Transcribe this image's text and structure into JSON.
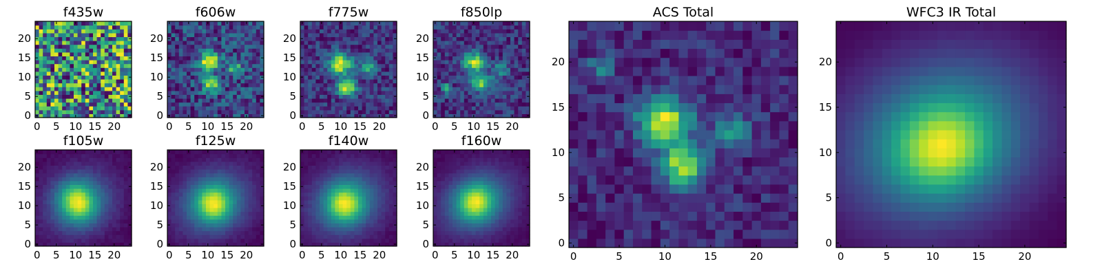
{
  "chart_data": [
    {
      "type": "heatmap",
      "title": "f435w",
      "xticks": [
        0,
        5,
        10,
        15,
        20
      ],
      "yticks": [
        0,
        5,
        10,
        15,
        20
      ],
      "xlim": [
        -0.5,
        24.5
      ],
      "ylim": [
        -0.5,
        24.5
      ],
      "grid_size": [
        25,
        25
      ],
      "colormap": "viridis",
      "features": [],
      "noise": 0.42,
      "bias": 0.62,
      "dark_patches": []
    },
    {
      "type": "heatmap",
      "title": "f606w",
      "xticks": [
        0,
        5,
        10,
        15,
        20
      ],
      "yticks": [
        0,
        5,
        10,
        15,
        20
      ],
      "xlim": [
        -0.5,
        24.5
      ],
      "ylim": [
        -0.5,
        24.5
      ],
      "grid_size": [
        25,
        25
      ],
      "colormap": "viridis",
      "features": [
        {
          "x": 10.5,
          "y": 14,
          "sx": 1.8,
          "sy": 1.6,
          "amp": 0.55
        },
        {
          "x": 11,
          "y": 8,
          "sx": 1.6,
          "sy": 1.3,
          "amp": 0.45
        },
        {
          "x": 17,
          "y": 12.5,
          "sx": 1.3,
          "sy": 1.2,
          "amp": 0.3
        }
      ],
      "noise": 0.28,
      "bias": 0.4,
      "dark_patches": []
    },
    {
      "type": "heatmap",
      "title": "f775w",
      "xticks": [
        0,
        5,
        10,
        15,
        20
      ],
      "yticks": [
        0,
        5,
        10,
        15,
        20
      ],
      "xlim": [
        -0.5,
        24.5
      ],
      "ylim": [
        -0.5,
        24.5
      ],
      "grid_size": [
        25,
        25
      ],
      "colormap": "viridis",
      "features": [
        {
          "x": 10,
          "y": 13.5,
          "sx": 2,
          "sy": 1.8,
          "amp": 0.6
        },
        {
          "x": 11.5,
          "y": 7.5,
          "sx": 1.8,
          "sy": 1.5,
          "amp": 0.55
        },
        {
          "x": 17,
          "y": 12.5,
          "sx": 1.4,
          "sy": 1.3,
          "amp": 0.35
        }
      ],
      "noise": 0.22,
      "bias": 0.32,
      "dark_patches": []
    },
    {
      "type": "heatmap",
      "title": "f850lp",
      "xticks": [
        0,
        5,
        10,
        15,
        20
      ],
      "yticks": [
        0,
        5,
        10,
        15,
        20
      ],
      "xlim": [
        -0.5,
        24.5
      ],
      "ylim": [
        -0.5,
        24.5
      ],
      "grid_size": [
        25,
        25
      ],
      "colormap": "viridis",
      "features": [
        {
          "x": 10,
          "y": 14,
          "sx": 2,
          "sy": 1.8,
          "amp": 0.55
        },
        {
          "x": 12,
          "y": 8.5,
          "sx": 2,
          "sy": 1.6,
          "amp": 0.5
        },
        {
          "x": 3,
          "y": 7,
          "sx": 0.8,
          "sy": 1,
          "amp": 0.45
        },
        {
          "x": 17,
          "y": 12,
          "sx": 1.4,
          "sy": 1.3,
          "amp": 0.3
        }
      ],
      "noise": 0.24,
      "bias": 0.33,
      "dark_patches": []
    },
    {
      "type": "heatmap",
      "title": "f105w",
      "xticks": [
        0,
        5,
        10,
        15,
        20
      ],
      "yticks": [
        0,
        5,
        10,
        15,
        20
      ],
      "xlim": [
        -0.5,
        24.5
      ],
      "ylim": [
        -0.5,
        24.5
      ],
      "grid_size": [
        25,
        25
      ],
      "colormap": "viridis",
      "features": [
        {
          "x": 10.5,
          "y": 11,
          "sx": 3,
          "sy": 3.6,
          "amp": 0.7,
          "rot": -0.5
        },
        {
          "x": 11,
          "y": 11,
          "sx": 6.5,
          "sy": 5.5,
          "amp": 0.5,
          "rot": -0.5
        }
      ],
      "noise": 0.07,
      "bias": 0.06,
      "dark_patches": []
    },
    {
      "type": "heatmap",
      "title": "f125w",
      "xticks": [
        0,
        5,
        10,
        15,
        20
      ],
      "yticks": [
        0,
        5,
        10,
        15,
        20
      ],
      "xlim": [
        -0.5,
        24.5
      ],
      "ylim": [
        -0.5,
        24.5
      ],
      "grid_size": [
        25,
        25
      ],
      "colormap": "viridis",
      "features": [
        {
          "x": 11.5,
          "y": 10.5,
          "sx": 3,
          "sy": 3.2,
          "amp": 0.65,
          "rot": -0.5
        },
        {
          "x": 11.5,
          "y": 11,
          "sx": 7,
          "sy": 5.8,
          "amp": 0.55,
          "rot": -0.5
        }
      ],
      "noise": 0.06,
      "bias": 0.05,
      "dark_patches": []
    },
    {
      "type": "heatmap",
      "title": "f140w",
      "xticks": [
        0,
        5,
        10,
        15,
        20
      ],
      "yticks": [
        0,
        5,
        10,
        15,
        20
      ],
      "xlim": [
        -0.5,
        24.5
      ],
      "ylim": [
        -0.5,
        24.5
      ],
      "grid_size": [
        25,
        25
      ],
      "colormap": "viridis",
      "features": [
        {
          "x": 11,
          "y": 10.5,
          "sx": 3,
          "sy": 3.2,
          "amp": 0.65,
          "rot": -0.5
        },
        {
          "x": 11.5,
          "y": 11,
          "sx": 7,
          "sy": 5.8,
          "amp": 0.55,
          "rot": -0.5
        }
      ],
      "noise": 0.06,
      "bias": 0.04,
      "dark_patches": []
    },
    {
      "type": "heatmap",
      "title": "f160w",
      "xticks": [
        0,
        5,
        10,
        15,
        20
      ],
      "yticks": [
        0,
        5,
        10,
        15,
        20
      ],
      "xlim": [
        -0.5,
        24.5
      ],
      "ylim": [
        -0.5,
        24.5
      ],
      "grid_size": [
        25,
        25
      ],
      "colormap": "viridis",
      "features": [
        {
          "x": 10.5,
          "y": 11,
          "sx": 3.2,
          "sy": 3.2,
          "amp": 0.65,
          "rot": -0.5
        },
        {
          "x": 11,
          "y": 11,
          "sx": 7,
          "sy": 5.5,
          "amp": 0.5,
          "rot": -0.5
        }
      ],
      "noise": 0.05,
      "bias": 0.02,
      "dark_patches": []
    },
    {
      "type": "heatmap",
      "title": "ACS Total",
      "xticks": [
        0,
        5,
        10,
        15,
        20
      ],
      "yticks": [
        0,
        5,
        10,
        15,
        20
      ],
      "xlim": [
        -0.5,
        24.5
      ],
      "ylim": [
        -0.5,
        24.5
      ],
      "grid_size": [
        25,
        25
      ],
      "colormap": "viridis",
      "features": [
        {
          "x": 10,
          "y": 13.5,
          "sx": 2,
          "sy": 1.7,
          "amp": 0.55
        },
        {
          "x": 12,
          "y": 8.5,
          "sx": 1.8,
          "sy": 1.6,
          "amp": 0.5
        },
        {
          "x": 17.5,
          "y": 12.5,
          "sx": 1.3,
          "sy": 1.2,
          "amp": 0.3
        },
        {
          "x": 3,
          "y": 19.5,
          "sx": 1,
          "sy": 1,
          "amp": 0.2
        }
      ],
      "noise": 0.16,
      "bias": 0.35,
      "dark_patches": [
        [
          24,
          11
        ],
        [
          24,
          12
        ],
        [
          23,
          23
        ],
        [
          2,
          0
        ],
        [
          2,
          1
        ],
        [
          1,
          5
        ],
        [
          0,
          4
        ],
        [
          5,
          1
        ],
        [
          19,
          19
        ],
        [
          18,
          21
        ]
      ]
    },
    {
      "type": "heatmap",
      "title": "WFC3 IR Total",
      "xticks": [
        0,
        5,
        10,
        15,
        20
      ],
      "yticks": [
        0,
        5,
        10,
        15,
        20
      ],
      "xlim": [
        -0.5,
        24.5
      ],
      "ylim": [
        -0.5,
        24.5
      ],
      "grid_size": [
        25,
        25
      ],
      "colormap": "viridis",
      "features": [
        {
          "x": 11,
          "y": 10.5,
          "sx": 3.5,
          "sy": 3.2,
          "amp": 0.5,
          "rot": -0.45
        },
        {
          "x": 11,
          "y": 11.5,
          "sx": 8,
          "sy": 6.5,
          "amp": 0.55,
          "rot": -0.45
        }
      ],
      "noise": 0.015,
      "bias": 0.0,
      "dark_patches": []
    }
  ]
}
